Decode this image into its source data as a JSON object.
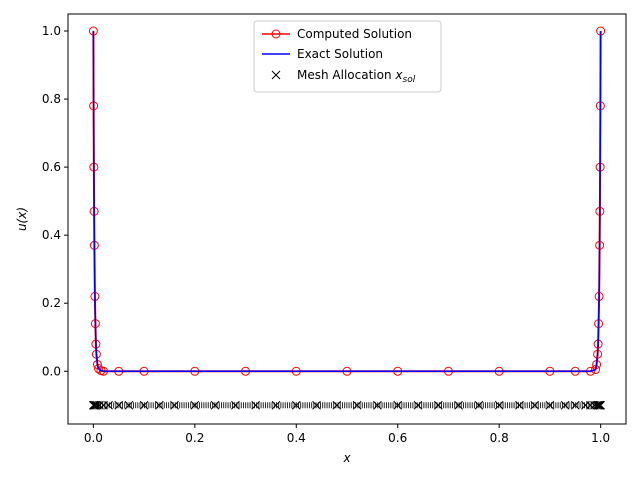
{
  "chart_data": {
    "type": "line",
    "xlabel": "x",
    "ylabel": "u(x)",
    "xlim": [
      -0.05,
      1.05
    ],
    "ylim": [
      -0.155,
      1.05
    ],
    "xticks": [
      0.0,
      0.2,
      0.4,
      0.6,
      0.8,
      1.0
    ],
    "xtick_labels": [
      "0.0",
      "0.2",
      "0.4",
      "0.6",
      "0.8",
      "1.0"
    ],
    "yticks": [
      0.0,
      0.2,
      0.4,
      0.6,
      0.8,
      1.0
    ],
    "ytick_labels": [
      "0.0",
      "0.2",
      "0.4",
      "0.6",
      "0.8",
      "1.0"
    ],
    "grid": false,
    "legend_position": "top-center",
    "series": [
      {
        "name": "Computed Solution",
        "color": "#ff0000",
        "marker": "open-circle",
        "x": [
          0.0,
          0.0005,
          0.001,
          0.0015,
          0.002,
          0.003,
          0.004,
          0.005,
          0.006,
          0.008,
          0.01,
          0.015,
          0.02,
          0.05,
          0.1,
          0.2,
          0.3,
          0.4,
          0.5,
          0.6,
          0.7,
          0.8,
          0.9,
          0.95,
          0.98,
          0.99,
          0.992,
          0.994,
          0.995,
          0.996,
          0.997,
          0.998,
          0.9985,
          0.999,
          0.9995,
          1.0
        ],
        "y": [
          1.0,
          0.78,
          0.6,
          0.47,
          0.37,
          0.22,
          0.14,
          0.08,
          0.05,
          0.02,
          0.008,
          0.002,
          0.0,
          0.0,
          0.0,
          0.0,
          0.0,
          0.0,
          0.0,
          0.0,
          0.0,
          0.0,
          0.0,
          0.0,
          0.0,
          0.005,
          0.02,
          0.05,
          0.08,
          0.14,
          0.22,
          0.37,
          0.47,
          0.6,
          0.78,
          1.0
        ]
      },
      {
        "name": "Exact Solution",
        "color": "#0000ff",
        "x": [
          0.0,
          0.0005,
          0.001,
          0.0015,
          0.002,
          0.003,
          0.004,
          0.005,
          0.006,
          0.008,
          0.01,
          0.015,
          0.02,
          0.05,
          0.1,
          0.2,
          0.3,
          0.4,
          0.5,
          0.6,
          0.7,
          0.8,
          0.9,
          0.95,
          0.98,
          0.99,
          0.992,
          0.994,
          0.995,
          0.996,
          0.997,
          0.998,
          0.9985,
          0.999,
          0.9995,
          1.0
        ],
        "y": [
          1.0,
          0.78,
          0.6,
          0.47,
          0.37,
          0.22,
          0.14,
          0.08,
          0.05,
          0.02,
          0.008,
          0.002,
          0.0,
          0.0,
          0.0,
          0.0,
          0.0,
          0.0,
          0.0,
          0.0,
          0.0,
          0.0,
          0.0,
          0.0,
          0.0,
          0.005,
          0.02,
          0.05,
          0.08,
          0.14,
          0.22,
          0.37,
          0.47,
          0.6,
          0.78,
          1.0
        ]
      },
      {
        "name": "Mesh Allocation x_sol",
        "color": "#000000",
        "marker": "x",
        "y_value": -0.1,
        "x": [
          0.0,
          0.001,
          0.002,
          0.003,
          0.005,
          0.008,
          0.012,
          0.02,
          0.03,
          0.05,
          0.07,
          0.1,
          0.13,
          0.16,
          0.2,
          0.24,
          0.28,
          0.32,
          0.36,
          0.4,
          0.44,
          0.48,
          0.52,
          0.56,
          0.6,
          0.64,
          0.68,
          0.72,
          0.76,
          0.8,
          0.84,
          0.87,
          0.9,
          0.93,
          0.95,
          0.97,
          0.98,
          0.988,
          0.992,
          0.995,
          0.997,
          0.998,
          0.999,
          1.0
        ]
      }
    ]
  },
  "legend": {
    "computed_label": "Computed Solution",
    "exact_label": "Exact Solution",
    "mesh_label_main": "Mesh Allocation ",
    "mesh_label_var": "x",
    "mesh_label_sub": "sol"
  }
}
